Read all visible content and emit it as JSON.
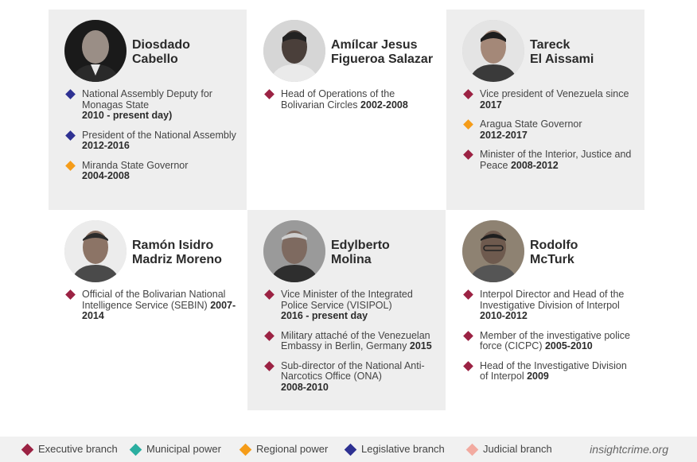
{
  "colors": {
    "executive": "#9b2243",
    "municipal": "#2aaea0",
    "regional": "#f59c19",
    "legislative": "#2e3192",
    "judicial": "#f2aaa0"
  },
  "people": [
    {
      "name_line1": "Diosdado",
      "name_line2": "Cabello",
      "roles": [
        {
          "branch": "legislative",
          "text": "National Assembly Deputy for Monagas State",
          "years": "2010 - present day)"
        },
        {
          "branch": "legislative",
          "text": "President of the National Assembly",
          "years": "2012-2016"
        },
        {
          "branch": "regional",
          "text": "Miranda State Governor",
          "years": "2004-2008"
        }
      ]
    },
    {
      "name_line1": "Amílcar Jesus",
      "name_line2": "Figueroa Salazar",
      "roles": [
        {
          "branch": "executive",
          "text": "Head of Operations of the Bolivarian Circles",
          "years": "2002-2008"
        }
      ]
    },
    {
      "name_line1": "Tareck",
      "name_line2": "El Aissami",
      "roles": [
        {
          "branch": "executive",
          "text": "Vice president of Venezuela since",
          "years": "2017"
        },
        {
          "branch": "regional",
          "text": "Aragua State Governor",
          "years": "2012-2017"
        },
        {
          "branch": "executive",
          "text": "Minister of the Interior, Justice and Peace",
          "years": "2008-2012"
        }
      ]
    },
    {
      "name_line1": "Ramón Isidro",
      "name_line2": "Madriz Moreno",
      "roles": [
        {
          "branch": "executive",
          "text": "Official of the Bolivarian National Intelligence Service (SEBIN)",
          "years": "2007-2014"
        }
      ]
    },
    {
      "name_line1": "Edylberto",
      "name_line2": "Molina",
      "roles": [
        {
          "branch": "executive",
          "text": "Vice Minister of the Integrated Police Service (VISIPOL)",
          "years": "2016 - present day"
        },
        {
          "branch": "executive",
          "text": "Military attaché of the Venezuelan Embassy in Berlin, Germany",
          "years": "2015"
        },
        {
          "branch": "executive",
          "text": "Sub-director of the National Anti-Narcotics Office (ONA)",
          "years": "2008-2010"
        }
      ]
    },
    {
      "name_line1": "Rodolfo",
      "name_line2": "McTurk",
      "roles": [
        {
          "branch": "executive",
          "text": "Interpol Director and Head of the Investigative Division of Interpol",
          "years": "2010-2012"
        },
        {
          "branch": "executive",
          "text": "Member of the investigative police force (CICPC)",
          "years": "2005-2010"
        },
        {
          "branch": "executive",
          "text": "Head of the Investigative Division of Interpol",
          "years": "2009"
        }
      ]
    }
  ],
  "legend": {
    "executive": "Executive branch",
    "municipal": "Municipal power",
    "regional": "Regional power",
    "legislative": "Legislative branch",
    "judicial": "Judicial branch",
    "brand": "insightcrime.org"
  }
}
